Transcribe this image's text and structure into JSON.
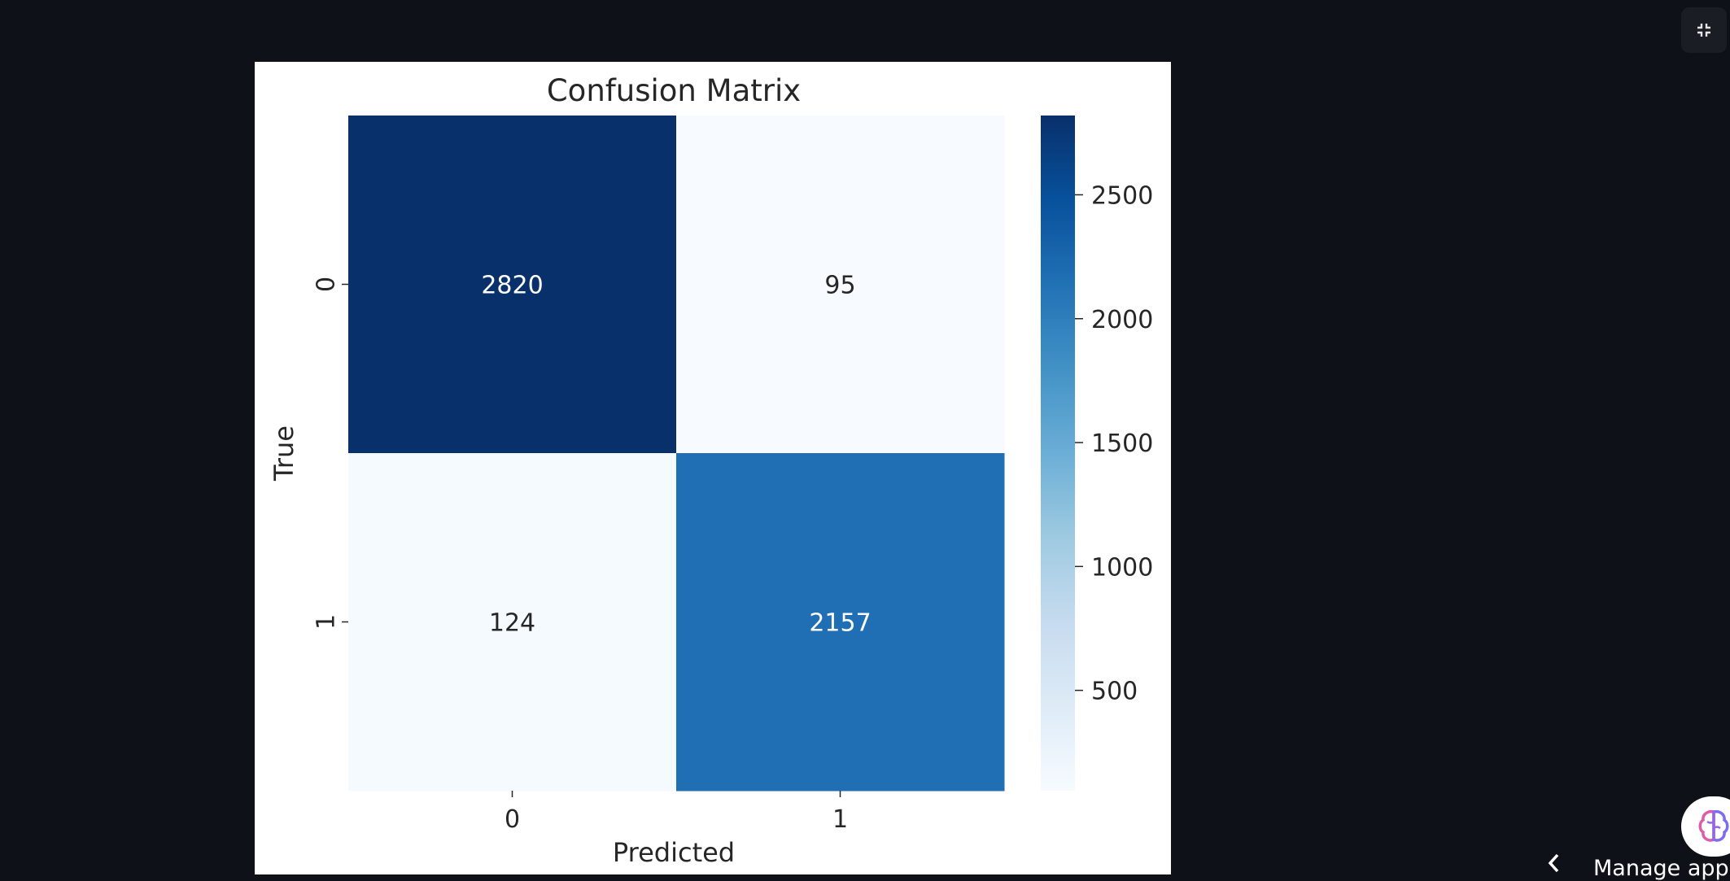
{
  "chart_data": {
    "type": "heatmap",
    "title": "Confusion Matrix",
    "xlabel": "Predicted",
    "ylabel": "True",
    "x_categories": [
      "0",
      "1"
    ],
    "y_categories": [
      "0",
      "1"
    ],
    "values": [
      [
        2820,
        95
      ],
      [
        124,
        2157
      ]
    ],
    "colormap": "Blues",
    "colorbar": {
      "range": [
        95,
        2820
      ],
      "ticks": [
        500,
        1000,
        1500,
        2000,
        2500
      ],
      "tick_labels": [
        "500",
        "1000",
        "1500",
        "2000",
        "2500"
      ]
    }
  },
  "footer": {
    "manage_app_label": "Manage app"
  },
  "icons": {
    "fullscreen": "exit-fullscreen-icon",
    "chevron": "chevron-left-icon",
    "badge": "brain-icon"
  }
}
